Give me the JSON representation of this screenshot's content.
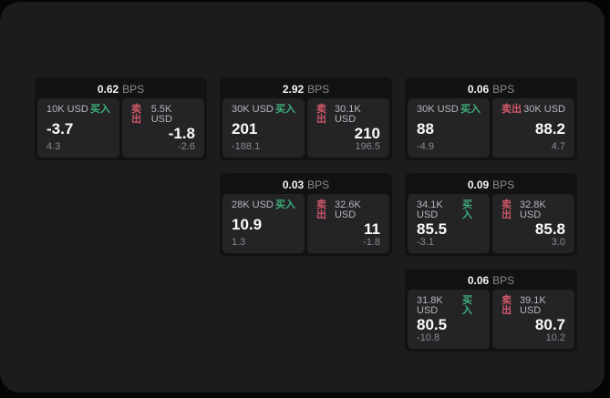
{
  "colors": {
    "buy_green": "#3fae7a",
    "sell_red": "#cf5868",
    "board_bg": "#1c1c1e",
    "card_bg": "#121214",
    "panel_bg": "#242427"
  },
  "bps_unit": "BPS",
  "cards": [
    {
      "bps": "0.62",
      "unit": "BPS",
      "buy": {
        "amount": "10K USD",
        "label": "买入",
        "value": "-3.7",
        "sub": "4.3"
      },
      "sell": {
        "label": "卖出",
        "amount": "5.5K USD",
        "value": "-1.8",
        "sub": "-2.6"
      }
    },
    {
      "bps": "2.92",
      "unit": "BPS",
      "buy": {
        "amount": "30K USD",
        "label": "买入",
        "value": "201",
        "sub": "-188.1"
      },
      "sell": {
        "label": "卖出",
        "amount": "30.1K USD",
        "value": "210",
        "sub": "196.5"
      }
    },
    {
      "bps": "0.06",
      "unit": "BPS",
      "buy": {
        "amount": "30K USD",
        "label": "买入",
        "value": "88",
        "sub": "-4.9"
      },
      "sell": {
        "label": "卖出",
        "amount": "30K USD",
        "value": "88.2",
        "sub": "4.7"
      }
    },
    {
      "bps": "0.03",
      "unit": "BPS",
      "buy": {
        "amount": "28K USD",
        "label": "买入",
        "value": "10.9",
        "sub": "1.3"
      },
      "sell": {
        "label": "卖出",
        "amount": "32.6K USD",
        "value": "11",
        "sub": "-1.8"
      }
    },
    {
      "bps": "0.09",
      "unit": "BPS",
      "buy": {
        "amount": "34.1K USD",
        "label": "买入",
        "value": "85.5",
        "sub": "-3.1"
      },
      "sell": {
        "label": "卖出",
        "amount": "32.8K USD",
        "value": "85.8",
        "sub": "3.0"
      }
    },
    {
      "bps": "0.06",
      "unit": "BPS",
      "buy": {
        "amount": "31.8K USD",
        "label": "买入",
        "value": "80.5",
        "sub": "-10.8"
      },
      "sell": {
        "label": "卖出",
        "amount": "39.1K USD",
        "value": "80.7",
        "sub": "10.2"
      }
    }
  ]
}
